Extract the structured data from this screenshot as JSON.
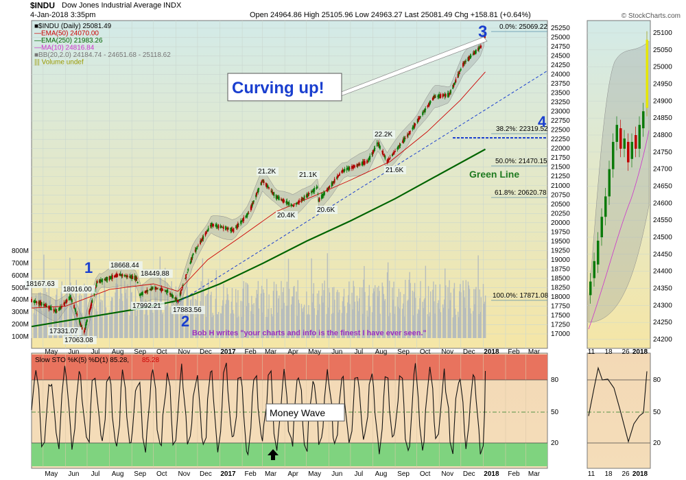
{
  "header": {
    "symbol": "$INDU",
    "name": "Dow Jones Industrial Average",
    "exchange": "INDX",
    "datetime": "4-Jan-2018 3:35pm",
    "quote": "Open 24964.86   High 25105.96   Low 24963.27   Last 25081.49   Chg +158.81 (+0.64%)",
    "watermark": "© StockCharts.com"
  },
  "legend": [
    {
      "text": "■$INDU (Daily) 25081.49",
      "color": "#000000"
    },
    {
      "text": "—EMA(50) 24070.00",
      "color": "#cc0000"
    },
    {
      "text": "—EMA(250) 21983.26",
      "color": "#006400"
    },
    {
      "text": "—MA(10) 24816.84",
      "color": "#cc33cc"
    },
    {
      "text": "■BB(20,2.0) 24184.74 - 24651.68 - 25118.62",
      "color": "#777777"
    },
    {
      "text": "||| Volume undef",
      "color": "#999900"
    }
  ],
  "annotations": {
    "curving": "Curving up!",
    "green_line": "Green Line",
    "quote_bob": "Bob H writes \"your charts and info is the finest I have ever seen.\"",
    "money_wave": "Money Wave",
    "wave_numbers": [
      "1",
      "2",
      "3",
      "4"
    ],
    "fib_labels": [
      "0.0%: 25069.22",
      "38.2%: 22319.52",
      "50.0%: 21470.15",
      "61.8%: 20620.78",
      "100.0%: 17871.08"
    ],
    "price_labels": [
      "18167.63",
      "18016.00",
      "18668.44",
      "18449.88",
      "17992.21",
      "17883.56",
      "17331.07",
      "17063.08",
      "21.2K",
      "21.1K",
      "20.4K",
      "20.6K",
      "22.2K",
      "21.6K"
    ],
    "slow_sto": "Slow STO %K(5) %D(1) 85.28, ",
    "slow_sto_val": "85.28"
  },
  "chart_data": {
    "type": "candlestick",
    "title": "$INDU Dow Jones Industrial Average INDX",
    "y_ticks": [
      "25250",
      "25000",
      "24750",
      "24500",
      "24250",
      "24000",
      "23750",
      "23500",
      "23250",
      "23000",
      "22750",
      "22500",
      "22250",
      "22000",
      "21750",
      "21500",
      "21250",
      "21000",
      "20750",
      "20500",
      "20250",
      "20000",
      "19750",
      "19500",
      "19250",
      "19000",
      "18750",
      "18500",
      "18250",
      "18000",
      "17750",
      "17500",
      "17250",
      "17000"
    ],
    "ylim": [
      16750,
      25350
    ],
    "volume_ticks": [
      "800M",
      "700M",
      "600M",
      "500M",
      "400M",
      "300M",
      "200M",
      "100M"
    ],
    "x_ticks": [
      "May",
      "Jun",
      "Jul",
      "Aug",
      "Sep",
      "Oct",
      "Nov",
      "Dec",
      "2017",
      "Feb",
      "Mar",
      "Apr",
      "May",
      "Jun",
      "Jul",
      "Aug",
      "Sep",
      "Oct",
      "Nov",
      "Dec",
      "2018",
      "Feb",
      "Mar"
    ],
    "price_path": [
      [
        "2016-04-15",
        17900
      ],
      [
        "2016-05-01",
        17800
      ],
      [
        "2016-05-20",
        17600
      ],
      [
        "2016-06-08",
        18000
      ],
      [
        "2016-06-24",
        17150
      ],
      [
        "2016-06-27",
        17063
      ],
      [
        "2016-07-15",
        18400
      ],
      [
        "2016-08-15",
        18600
      ],
      [
        "2016-09-08",
        18500
      ],
      [
        "2016-09-12",
        18050
      ],
      [
        "2016-10-01",
        18250
      ],
      [
        "2016-10-20",
        18150
      ],
      [
        "2016-11-04",
        17890
      ],
      [
        "2016-11-25",
        19150
      ],
      [
        "2016-12-20",
        19950
      ],
      [
        "2017-01-20",
        19800
      ],
      [
        "2017-02-10",
        20250
      ],
      [
        "2017-03-01",
        21150
      ],
      [
        "2017-03-20",
        20700
      ],
      [
        "2017-04-13",
        20450
      ],
      [
        "2017-05-16",
        20950
      ],
      [
        "2017-05-18",
        20600
      ],
      [
        "2017-06-20",
        21400
      ],
      [
        "2017-07-25",
        21650
      ],
      [
        "2017-08-08",
        22150
      ],
      [
        "2017-08-21",
        21650
      ],
      [
        "2017-09-20",
        22400
      ],
      [
        "2017-10-25",
        23400
      ],
      [
        "2017-11-15",
        23450
      ],
      [
        "2017-12-05",
        24300
      ],
      [
        "2017-12-29",
        24750
      ],
      [
        "2018-01-04",
        25081
      ]
    ],
    "ema50_path": [
      [
        "2016-04-15",
        17700
      ],
      [
        "2016-06-01",
        17750
      ],
      [
        "2016-08-01",
        18200
      ],
      [
        "2016-10-01",
        18350
      ],
      [
        "2016-11-04",
        18150
      ],
      [
        "2016-12-15",
        19000
      ],
      [
        "2017-02-01",
        19650
      ],
      [
        "2017-03-20",
        20300
      ],
      [
        "2017-05-15",
        20750
      ],
      [
        "2017-07-01",
        21150
      ],
      [
        "2017-08-25",
        21650
      ],
      [
        "2017-10-15",
        22450
      ],
      [
        "2017-11-30",
        23300
      ],
      [
        "2018-01-04",
        24070
      ]
    ],
    "ema250_path": [
      [
        "2016-04-15",
        17200
      ],
      [
        "2016-07-01",
        17450
      ],
      [
        "2016-09-01",
        17650
      ],
      [
        "2016-11-04",
        17900
      ],
      [
        "2017-01-01",
        18350
      ],
      [
        "2017-03-01",
        18900
      ],
      [
        "2017-05-01",
        19500
      ],
      [
        "2017-07-01",
        20050
      ],
      [
        "2017-09-01",
        20650
      ],
      [
        "2017-11-01",
        21300
      ],
      [
        "2018-01-04",
        21983
      ]
    ],
    "stochastic": {
      "name": "Slow STO %K(5) %D(1)",
      "value": 85.28,
      "ylim": [
        0,
        100
      ],
      "levels": [
        20,
        50,
        80
      ],
      "ticks": [
        "80",
        "50",
        "20"
      ]
    },
    "inset": {
      "x_ticks": [
        "11",
        "18",
        "26",
        "2018"
      ],
      "y_ticks": [
        "25100",
        "25050",
        "25000",
        "24950",
        "24900",
        "24850",
        "24800",
        "24750",
        "24700",
        "24650",
        "24600",
        "24550",
        "24500",
        "24450",
        "24400",
        "24350",
        "24300",
        "24250",
        "24200"
      ],
      "ylim": [
        24180,
        25130
      ]
    },
    "grid": true
  },
  "colors": {
    "bg_top": "#d6ece8",
    "bg_bottom": "#f5e7a8",
    "ema50": "#cc0000",
    "ema250": "#006400",
    "bb": "#aaaaaa",
    "stoch_red": "#e8735e",
    "stoch_green": "#7fd37f",
    "label_blue": "#1a3fcf",
    "purple": "#9b2fbf"
  }
}
